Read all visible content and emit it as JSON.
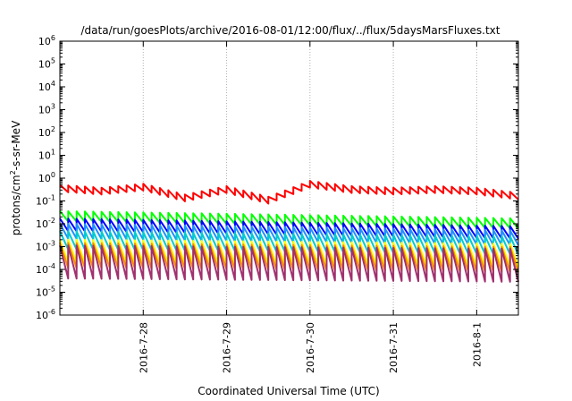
{
  "chart_data": {
    "type": "line",
    "title": "/data/run/goesPlots/archive/2016-08-01/12:00/flux/../flux/5daysMarsFluxes.txt",
    "xlabel": "Coordinated Universal Time (UTC)",
    "ylabel": {
      "pre": "protons/cm",
      "sup": "2",
      "post": "-s-sr-MeV"
    },
    "x_range": [
      "2016-07-27T00:00",
      "2016-08-01T12:00"
    ],
    "x_ticks": [
      "2016-7-28",
      "2016-7-29",
      "2016-7-30",
      "2016-7-31",
      "2016-8-1"
    ],
    "y_scale": "log",
    "ylim": [
      1e-06,
      1000000.0
    ],
    "y_ticks": [
      {
        "base": "10",
        "exp": "-6"
      },
      {
        "base": "10",
        "exp": "-5"
      },
      {
        "base": "10",
        "exp": "-4"
      },
      {
        "base": "10",
        "exp": "-3"
      },
      {
        "base": "10",
        "exp": "-2"
      },
      {
        "base": "10",
        "exp": "-1"
      },
      {
        "base": "10",
        "exp": "0"
      },
      {
        "base": "10",
        "exp": "1"
      },
      {
        "base": "10",
        "exp": "2"
      },
      {
        "base": "10",
        "exp": "3"
      },
      {
        "base": "10",
        "exp": "4"
      },
      {
        "base": "10",
        "exp": "5"
      },
      {
        "base": "10",
        "exp": "6"
      }
    ],
    "grid": true,
    "sawtooth_period_days": 0.1,
    "series": [
      {
        "color": "#ff0000",
        "baseline": [
          [
            0.0,
            0.4
          ],
          [
            0.5,
            0.3
          ],
          [
            1.0,
            0.45
          ],
          [
            1.5,
            0.15
          ],
          [
            2.0,
            0.35
          ],
          [
            2.5,
            0.12
          ],
          [
            3.0,
            0.6
          ],
          [
            3.5,
            0.35
          ],
          [
            4.0,
            0.3
          ],
          [
            4.5,
            0.35
          ],
          [
            5.0,
            0.3
          ],
          [
            5.5,
            0.18
          ]
        ],
        "amp_decades": 0.3
      },
      {
        "color": "#00ff00",
        "baseline": [
          [
            0.0,
            0.025
          ],
          [
            5.5,
            0.012
          ]
        ],
        "amp_decades": 0.45
      },
      {
        "color": "#0000ff",
        "baseline": [
          [
            0.0,
            0.011
          ],
          [
            5.5,
            0.005
          ]
        ],
        "amp_decades": 0.55
      },
      {
        "color": "#1e90ff",
        "baseline": [
          [
            0.0,
            0.006
          ],
          [
            5.5,
            0.003
          ]
        ],
        "amp_decades": 0.65
      },
      {
        "color": "#00cccc",
        "baseline": [
          [
            0.0,
            0.0025
          ],
          [
            5.5,
            0.0015
          ]
        ],
        "amp_decades": 0.8
      },
      {
        "color": "#ffff00",
        "baseline": [
          [
            0.0,
            0.0009
          ],
          [
            5.5,
            0.0006
          ]
        ],
        "amp_decades": 1.0
      },
      {
        "color": "#ff8c00",
        "baseline": [
          [
            0.0,
            0.0006
          ],
          [
            5.5,
            0.0004
          ]
        ],
        "amp_decades": 1.1
      },
      {
        "color": "#a0306e",
        "baseline": [
          [
            0.0,
            0.00035
          ],
          [
            5.5,
            0.00025
          ]
        ],
        "amp_decades": 1.45
      }
    ]
  }
}
